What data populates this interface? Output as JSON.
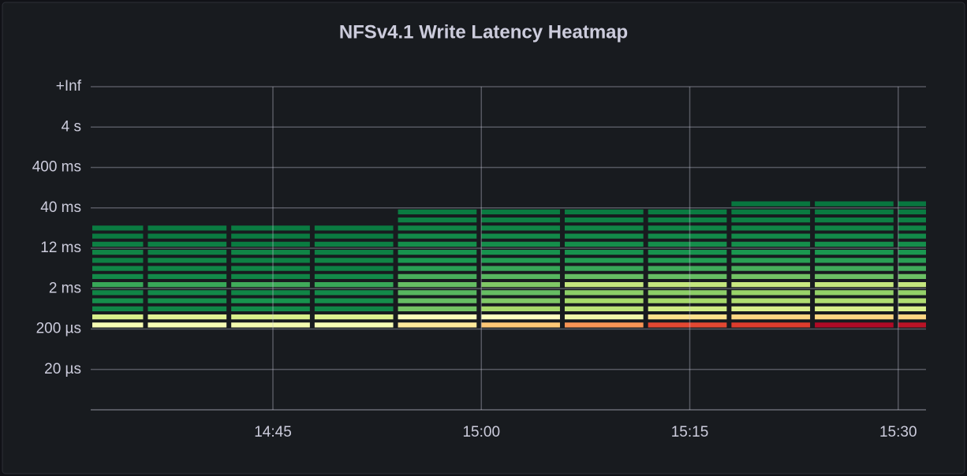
{
  "chart_data": {
    "type": "heatmap",
    "title": "NFSv4.1 Write Latency Heatmap",
    "x": [
      "14:30",
      "14:36",
      "14:42",
      "14:48",
      "14:54",
      "15:00",
      "15:06",
      "15:12",
      "15:18",
      "15:24",
      "15:30"
    ],
    "bucket_minutes": 6,
    "xlim": [
      "14:32",
      "15:32"
    ],
    "xticks": [
      "14:45",
      "15:00",
      "15:15",
      "15:30"
    ],
    "y": [
      10,
      11,
      12,
      13,
      14,
      15,
      16,
      17,
      18,
      19,
      20,
      21,
      22,
      23,
      24,
      25
    ],
    "ylim": [
      0,
      40
    ],
    "yticks": [
      {
        "value": 5,
        "label": "20 µs"
      },
      {
        "value": 10,
        "label": "200 µs"
      },
      {
        "value": 15,
        "label": "2 ms"
      },
      {
        "value": 20,
        "label": "12 ms"
      },
      {
        "value": 25,
        "label": "40 ms"
      },
      {
        "value": 30,
        "label": "400 ms"
      },
      {
        "value": 35,
        "label": "4 s"
      },
      {
        "value": 40,
        "label": "+Inf"
      }
    ],
    "zlim": [
      0,
      100
    ],
    "colors": [
      "#006837",
      "#1a9850",
      "#66bd63",
      "#a6d96a",
      "#d9ef8b",
      "#ffffbf",
      "#fee08b",
      "#fdae61",
      "#f46d43",
      "#d73027",
      "#a50026"
    ],
    "grid": true,
    "values": [
      [
        48,
        40,
        6,
        8,
        6,
        14,
        7,
        6,
        5,
        6,
        5,
        4,
        4,
        null,
        null,
        null
      ],
      [
        48,
        42,
        6,
        8,
        7,
        14,
        7,
        6,
        6,
        5,
        5,
        4,
        4,
        null,
        null,
        null
      ],
      [
        47,
        40,
        7,
        9,
        6,
        15,
        6,
        6,
        5,
        6,
        4,
        4,
        4,
        null,
        null,
        null
      ],
      [
        48,
        41,
        6,
        8,
        7,
        14,
        7,
        5,
        6,
        5,
        5,
        4,
        4,
        null,
        null,
        null
      ],
      [
        57,
        49,
        22,
        20,
        18,
        20,
        16,
        12,
        10,
        9,
        8,
        7,
        6,
        5,
        4,
        null
      ],
      [
        65,
        50,
        30,
        24,
        20,
        24,
        18,
        14,
        11,
        9,
        8,
        7,
        6,
        5,
        4,
        null
      ],
      [
        74,
        46,
        34,
        30,
        26,
        36,
        20,
        14,
        11,
        9,
        8,
        7,
        6,
        5,
        4,
        null
      ],
      [
        86,
        60,
        38,
        30,
        26,
        36,
        20,
        15,
        11,
        9,
        8,
        7,
        6,
        5,
        4,
        null
      ],
      [
        88,
        62,
        40,
        32,
        28,
        37,
        22,
        16,
        12,
        10,
        8,
        7,
        6,
        5,
        4,
        3
      ],
      [
        98,
        62,
        40,
        32,
        27,
        36,
        21,
        15,
        12,
        10,
        8,
        7,
        6,
        5,
        4,
        3
      ],
      [
        96,
        62,
        40,
        32,
        27,
        36,
        21,
        15,
        12,
        10,
        8,
        7,
        6,
        5,
        4,
        3
      ]
    ]
  }
}
